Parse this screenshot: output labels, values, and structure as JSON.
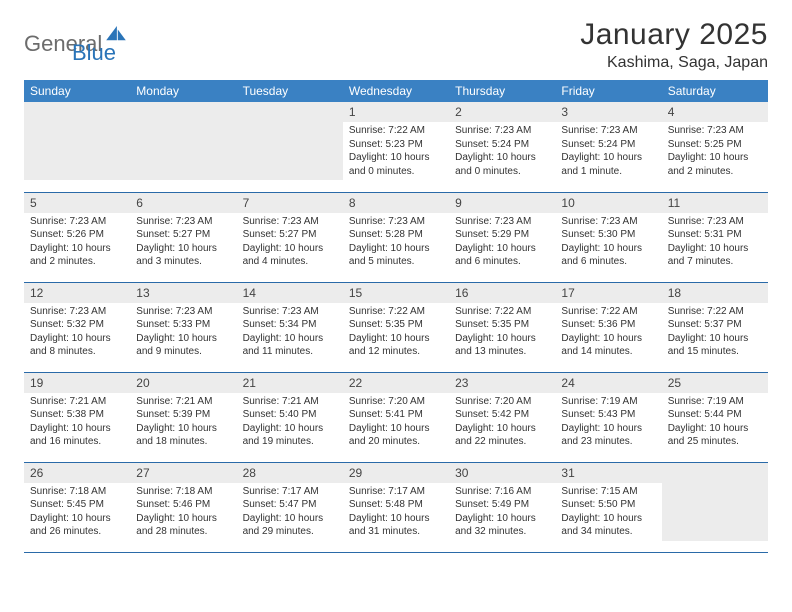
{
  "logo": {
    "text_a": "General",
    "text_b": "Blue",
    "shape_color": "#2a74b8"
  },
  "title": "January 2025",
  "location": "Kashima, Saga, Japan",
  "colors": {
    "header_bg": "#3a81c3",
    "header_text": "#ffffff",
    "row_divider": "#2a6aa8",
    "daynum_bg": "#ececec",
    "body_text": "#333333"
  },
  "weekdays": [
    "Sunday",
    "Monday",
    "Tuesday",
    "Wednesday",
    "Thursday",
    "Friday",
    "Saturday"
  ],
  "weeks": [
    [
      null,
      null,
      null,
      {
        "n": "1",
        "sr": "7:22 AM",
        "ss": "5:23 PM",
        "dl": "10 hours and 0 minutes."
      },
      {
        "n": "2",
        "sr": "7:23 AM",
        "ss": "5:24 PM",
        "dl": "10 hours and 0 minutes."
      },
      {
        "n": "3",
        "sr": "7:23 AM",
        "ss": "5:24 PM",
        "dl": "10 hours and 1 minute."
      },
      {
        "n": "4",
        "sr": "7:23 AM",
        "ss": "5:25 PM",
        "dl": "10 hours and 2 minutes."
      }
    ],
    [
      {
        "n": "5",
        "sr": "7:23 AM",
        "ss": "5:26 PM",
        "dl": "10 hours and 2 minutes."
      },
      {
        "n": "6",
        "sr": "7:23 AM",
        "ss": "5:27 PM",
        "dl": "10 hours and 3 minutes."
      },
      {
        "n": "7",
        "sr": "7:23 AM",
        "ss": "5:27 PM",
        "dl": "10 hours and 4 minutes."
      },
      {
        "n": "8",
        "sr": "7:23 AM",
        "ss": "5:28 PM",
        "dl": "10 hours and 5 minutes."
      },
      {
        "n": "9",
        "sr": "7:23 AM",
        "ss": "5:29 PM",
        "dl": "10 hours and 6 minutes."
      },
      {
        "n": "10",
        "sr": "7:23 AM",
        "ss": "5:30 PM",
        "dl": "10 hours and 6 minutes."
      },
      {
        "n": "11",
        "sr": "7:23 AM",
        "ss": "5:31 PM",
        "dl": "10 hours and 7 minutes."
      }
    ],
    [
      {
        "n": "12",
        "sr": "7:23 AM",
        "ss": "5:32 PM",
        "dl": "10 hours and 8 minutes."
      },
      {
        "n": "13",
        "sr": "7:23 AM",
        "ss": "5:33 PM",
        "dl": "10 hours and 9 minutes."
      },
      {
        "n": "14",
        "sr": "7:23 AM",
        "ss": "5:34 PM",
        "dl": "10 hours and 11 minutes."
      },
      {
        "n": "15",
        "sr": "7:22 AM",
        "ss": "5:35 PM",
        "dl": "10 hours and 12 minutes."
      },
      {
        "n": "16",
        "sr": "7:22 AM",
        "ss": "5:35 PM",
        "dl": "10 hours and 13 minutes."
      },
      {
        "n": "17",
        "sr": "7:22 AM",
        "ss": "5:36 PM",
        "dl": "10 hours and 14 minutes."
      },
      {
        "n": "18",
        "sr": "7:22 AM",
        "ss": "5:37 PM",
        "dl": "10 hours and 15 minutes."
      }
    ],
    [
      {
        "n": "19",
        "sr": "7:21 AM",
        "ss": "5:38 PM",
        "dl": "10 hours and 16 minutes."
      },
      {
        "n": "20",
        "sr": "7:21 AM",
        "ss": "5:39 PM",
        "dl": "10 hours and 18 minutes."
      },
      {
        "n": "21",
        "sr": "7:21 AM",
        "ss": "5:40 PM",
        "dl": "10 hours and 19 minutes."
      },
      {
        "n": "22",
        "sr": "7:20 AM",
        "ss": "5:41 PM",
        "dl": "10 hours and 20 minutes."
      },
      {
        "n": "23",
        "sr": "7:20 AM",
        "ss": "5:42 PM",
        "dl": "10 hours and 22 minutes."
      },
      {
        "n": "24",
        "sr": "7:19 AM",
        "ss": "5:43 PM",
        "dl": "10 hours and 23 minutes."
      },
      {
        "n": "25",
        "sr": "7:19 AM",
        "ss": "5:44 PM",
        "dl": "10 hours and 25 minutes."
      }
    ],
    [
      {
        "n": "26",
        "sr": "7:18 AM",
        "ss": "5:45 PM",
        "dl": "10 hours and 26 minutes."
      },
      {
        "n": "27",
        "sr": "7:18 AM",
        "ss": "5:46 PM",
        "dl": "10 hours and 28 minutes."
      },
      {
        "n": "28",
        "sr": "7:17 AM",
        "ss": "5:47 PM",
        "dl": "10 hours and 29 minutes."
      },
      {
        "n": "29",
        "sr": "7:17 AM",
        "ss": "5:48 PM",
        "dl": "10 hours and 31 minutes."
      },
      {
        "n": "30",
        "sr": "7:16 AM",
        "ss": "5:49 PM",
        "dl": "10 hours and 32 minutes."
      },
      {
        "n": "31",
        "sr": "7:15 AM",
        "ss": "5:50 PM",
        "dl": "10 hours and 34 minutes."
      },
      null
    ]
  ],
  "labels": {
    "sunrise": "Sunrise:",
    "sunset": "Sunset:",
    "daylight": "Daylight:"
  }
}
